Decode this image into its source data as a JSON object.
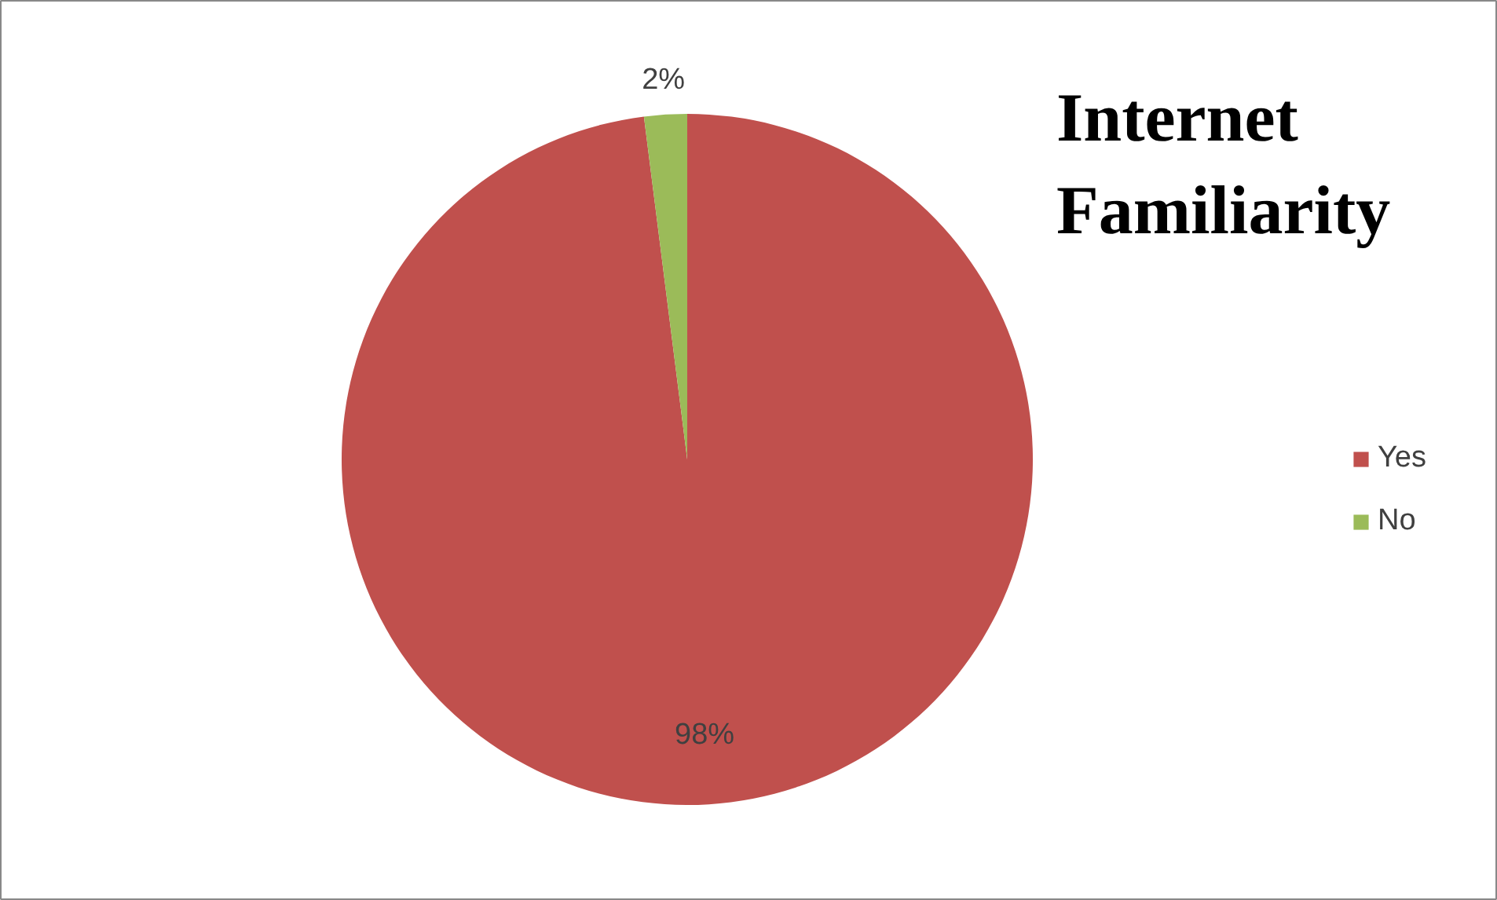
{
  "chart_data": {
    "type": "pie",
    "title": "Internet Familiarity",
    "categories": [
      "Yes",
      "No"
    ],
    "values": [
      98,
      2
    ],
    "colors": [
      "#c0504d",
      "#9bbb59"
    ],
    "value_labels": [
      "98%",
      "2%"
    ],
    "legend": "right"
  }
}
